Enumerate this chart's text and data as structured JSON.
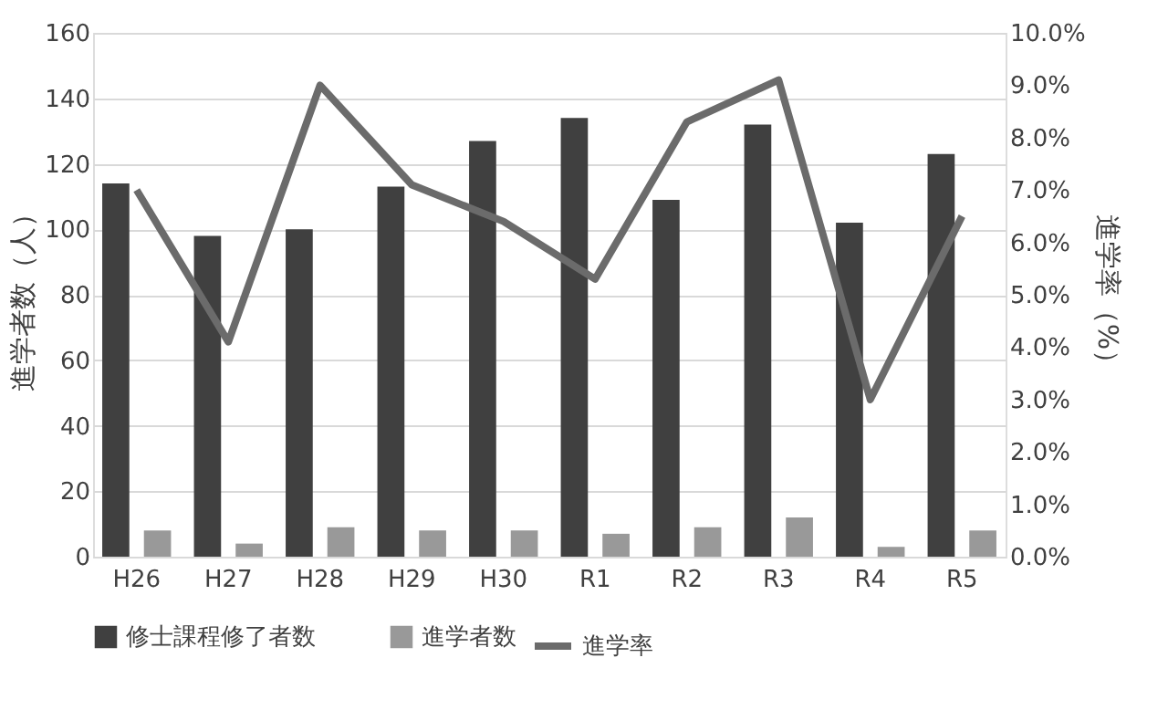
{
  "chart_data": {
    "type": "bar",
    "categories": [
      "H26",
      "H27",
      "H28",
      "H29",
      "H30",
      "R1",
      "R2",
      "R3",
      "R4",
      "R5"
    ],
    "ylabel": "進学者数（人）",
    "y2label": "進学率（%）",
    "series": [
      {
        "name": "修士課程修了者数",
        "color": "#404040",
        "values": [
          114,
          98,
          100,
          113,
          127,
          134,
          109,
          132,
          102,
          123
        ]
      },
      {
        "name": "進学者数",
        "color": "#999999",
        "values": [
          8,
          4,
          9,
          8,
          8,
          7,
          9,
          12,
          3,
          8
        ]
      },
      {
        "name": "進学率",
        "type": "line",
        "axis": "y2",
        "color": "#6b6b6b",
        "values": [
          7.0,
          4.1,
          9.0,
          7.1,
          6.4,
          5.3,
          8.3,
          9.1,
          3.0,
          6.5
        ]
      }
    ],
    "ylim": [
      0,
      160
    ],
    "yticks": [
      0,
      20,
      40,
      60,
      80,
      100,
      120,
      140,
      160
    ],
    "y2lim": [
      0,
      10
    ],
    "y2ticks": [
      {
        "value": 0,
        "label": "0.0%"
      },
      {
        "value": 1,
        "label": "1.0%"
      },
      {
        "value": 2,
        "label": "2.0%"
      },
      {
        "value": 3,
        "label": "3.0%"
      },
      {
        "value": 4,
        "label": "4.0%"
      },
      {
        "value": 5,
        "label": "5.0%"
      },
      {
        "value": 6,
        "label": "6.0%"
      },
      {
        "value": 7,
        "label": "7.0%"
      },
      {
        "value": 8,
        "label": "8.0%"
      },
      {
        "value": 9,
        "label": "9.0%"
      },
      {
        "value": 10,
        "label": "10.0%"
      }
    ],
    "grid": "y",
    "legend": "bottom",
    "marker": "none",
    "line_style": "solid"
  }
}
